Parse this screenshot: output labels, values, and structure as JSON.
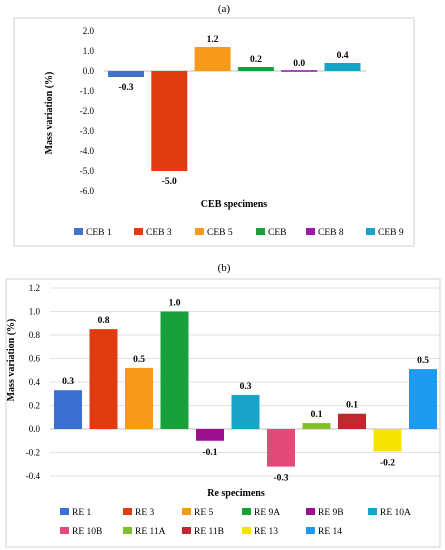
{
  "chart_data": [
    {
      "type": "bar",
      "panel_label": "(a)",
      "categories": [
        "CEB 1",
        "CEB 3",
        "CEB 5",
        "CEB",
        "CEB 8",
        "CEB 9"
      ],
      "values": [
        -0.3,
        -5.0,
        1.2,
        0.2,
        0.0,
        0.4
      ],
      "data_labels": [
        "-0.3",
        "-5.0",
        "1.2",
        "0.2",
        "0.0",
        "0.4"
      ],
      "colors": [
        "#4472C4",
        "#E03C0F",
        "#F79A1C",
        "#1AA03A",
        "#9B1BA6",
        "#1AA3C8"
      ],
      "xlabel": "CEB specimens",
      "ylabel": "Mass variation (%)",
      "ylim": [
        -6.0,
        2.0
      ],
      "yticks": [
        "2.0",
        "1.0",
        "0.0",
        "-1.0",
        "-2.0",
        "-3.0",
        "-4.0",
        "-5.0",
        "-6.0"
      ],
      "ytick_values": [
        2.0,
        1.0,
        0.0,
        -1.0,
        -2.0,
        -3.0,
        -4.0,
        -5.0,
        -6.0
      ],
      "grid": false,
      "legend": "bottom"
    },
    {
      "type": "bar",
      "panel_label": "(b)",
      "categories": [
        "RE 1",
        "RE 3",
        "RE 5",
        "RE 9A",
        "RE 9B",
        "RE 10A",
        "RE 10B",
        "RE 11A",
        "RE 11B",
        "RE 13",
        "RE 14"
      ],
      "values": [
        0.33,
        0.85,
        0.52,
        1.0,
        -0.1,
        0.29,
        -0.32,
        0.05,
        0.13,
        -0.19,
        0.51
      ],
      "data_labels": [
        "0.3",
        "0.8",
        "0.5",
        "1.0",
        "-0.1",
        "0.3",
        "-0.3",
        "0.1",
        "0.1",
        "-0.2",
        "0.5"
      ],
      "colors": [
        "#3B6FD0",
        "#E03C0F",
        "#F79A1C",
        "#1AA03A",
        "#9B0F8F",
        "#1AA3C8",
        "#E24A7A",
        "#7FBF2A",
        "#C0282E",
        "#F4E400",
        "#1E9BF0"
      ],
      "xlabel": "Re specimens",
      "ylabel": "Mass variation (%)",
      "ylim": [
        -0.4,
        1.2
      ],
      "yticks": [
        "1.2",
        "1.0",
        "0.8",
        "0.6",
        "0.4",
        "0.2",
        "0.0",
        "-0.2",
        "-0.4"
      ],
      "ytick_values": [
        1.2,
        1.0,
        0.8,
        0.6,
        0.4,
        0.2,
        0.0,
        -0.2,
        -0.4
      ],
      "grid": true,
      "legend": "bottom"
    }
  ]
}
